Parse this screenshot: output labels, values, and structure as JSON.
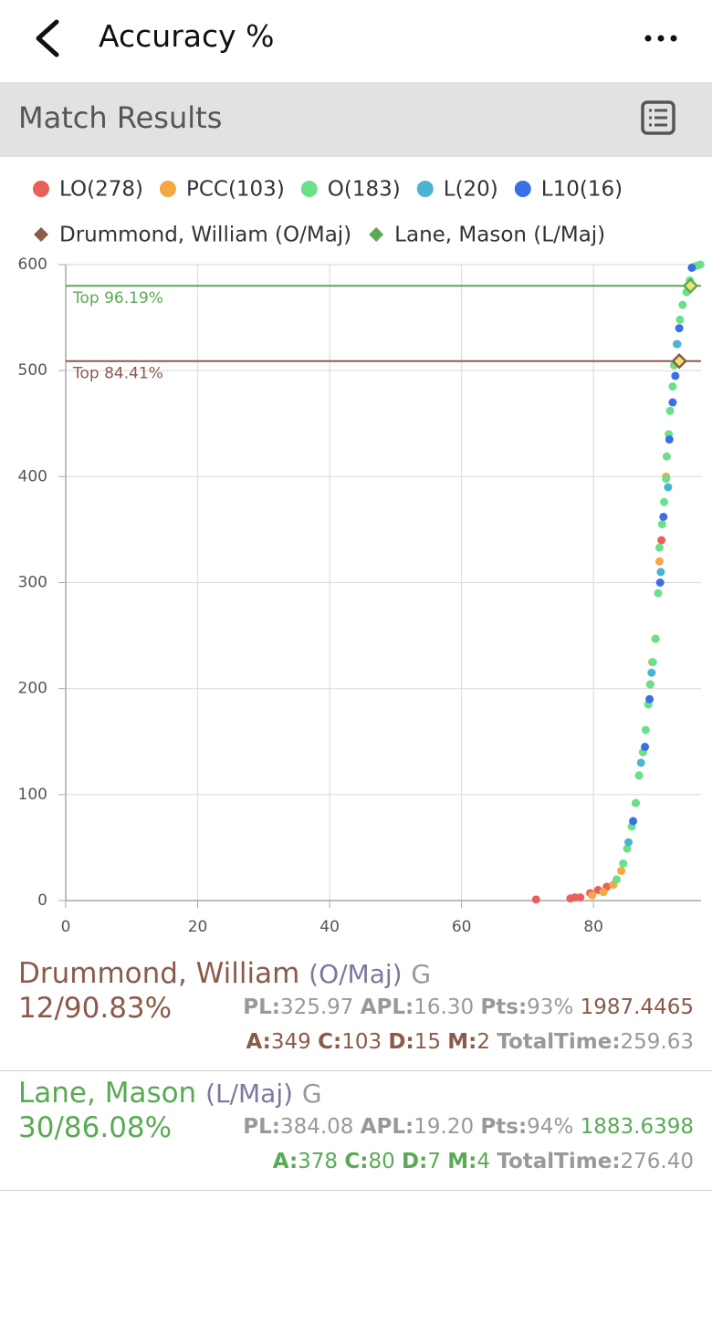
{
  "header": {
    "title": "Accuracy %"
  },
  "section": {
    "title": "Match Results"
  },
  "chart_data": {
    "type": "scatter",
    "xlim": [
      0,
      96.3
    ],
    "xticks": [
      0,
      20,
      40,
      60,
      80
    ],
    "ylim": [
      0,
      600
    ],
    "yticks": [
      0,
      100,
      200,
      300,
      400,
      500,
      600
    ],
    "grid": true,
    "series": [
      {
        "name": "LO(278)",
        "color": "#e8605a",
        "x": [
          71.3,
          76.5,
          77.2,
          78.0,
          79.5,
          80.7,
          82.0,
          86.9,
          88.6,
          89.4,
          90.3
        ],
        "values": [
          1,
          2,
          3,
          3,
          7,
          10,
          13,
          118,
          204,
          247,
          340
        ]
      },
      {
        "name": "PCC(103)",
        "color": "#f5a742",
        "x": [
          79.8,
          81.5,
          83.0,
          84.2,
          86.4,
          87.5,
          88.9,
          90.0,
          91.0
        ],
        "values": [
          5,
          8,
          15,
          28,
          92,
          140,
          225,
          320,
          400
        ]
      },
      {
        "name": "O(183)",
        "color": "#6be08a",
        "x": [
          83.5,
          84.5,
          85.1,
          85.8,
          86.4,
          86.9,
          87.5,
          87.9,
          88.3,
          88.6,
          89.0,
          89.4,
          89.8,
          90.0,
          90.4,
          90.7,
          91.0,
          91.1,
          91.4,
          91.6,
          92.0,
          92.2,
          92.6,
          93.1,
          93.5,
          94.1,
          94.6,
          95.2,
          95.7,
          96.2
        ],
        "values": [
          20,
          35,
          49,
          70,
          92,
          118,
          140,
          161,
          185,
          204,
          225,
          247,
          290,
          333,
          355,
          376,
          398,
          419,
          440,
          462,
          485,
          505,
          525,
          548,
          562,
          574,
          585,
          598,
          599,
          600
        ]
      },
      {
        "name": "L(20)",
        "color": "#4bb5d0",
        "x": [
          85.3,
          87.2,
          88.8,
          90.2,
          91.3,
          92.7
        ],
        "values": [
          55,
          130,
          215,
          310,
          390,
          525
        ]
      },
      {
        "name": "L10(16)",
        "color": "#3a6fe8",
        "x": [
          86.0,
          87.8,
          88.5,
          90.1,
          90.6,
          91.5,
          92.0,
          92.4,
          93.0,
          94.9
        ],
        "values": [
          75,
          145,
          190,
          300,
          362,
          435,
          470,
          495,
          540,
          597
        ]
      }
    ],
    "markers": [
      {
        "name": "Drummond, William (O/Maj)",
        "color": "#8b5a4a",
        "x": 93.0,
        "value": 509
      },
      {
        "name": "Lane, Mason (L/Maj)",
        "color": "#5aaa55",
        "x": 94.7,
        "value": 580
      }
    ],
    "reference_lines": [
      {
        "value": 580,
        "label": "Top 96.19%",
        "color": "#5aaa55"
      },
      {
        "value": 509,
        "label": "Top 84.41%",
        "color": "#8b5a4a"
      }
    ]
  },
  "players": [
    {
      "name": "Drummond, William",
      "division": "(O/Maj)",
      "grade": "G",
      "score": "12/90.83%",
      "color": "#8b5a4a",
      "line1": [
        {
          "label": "PL:",
          "value": "325.97"
        },
        {
          "label": "APL:",
          "value": "16.30"
        },
        {
          "label": "Pts:",
          "value": "93%"
        }
      ],
      "rating": "1987.4465",
      "line2": [
        {
          "label": "A:",
          "value": "349"
        },
        {
          "label": "C:",
          "value": "103"
        },
        {
          "label": "D:",
          "value": "15"
        },
        {
          "label": "M:",
          "value": "2"
        },
        {
          "label": "TotalTime:",
          "value": "259.63"
        }
      ]
    },
    {
      "name": "Lane, Mason",
      "division": "(L/Maj)",
      "grade": "G",
      "score": "30/86.08%",
      "color": "#5aaa55",
      "line1": [
        {
          "label": "PL:",
          "value": "384.08"
        },
        {
          "label": "APL:",
          "value": "19.20"
        },
        {
          "label": "Pts:",
          "value": "94%"
        }
      ],
      "rating": "1883.6398",
      "line2": [
        {
          "label": "A:",
          "value": "378"
        },
        {
          "label": "C:",
          "value": "80"
        },
        {
          "label": "D:",
          "value": "7"
        },
        {
          "label": "M:",
          "value": "4"
        },
        {
          "label": "TotalTime:",
          "value": "276.40"
        }
      ]
    }
  ]
}
